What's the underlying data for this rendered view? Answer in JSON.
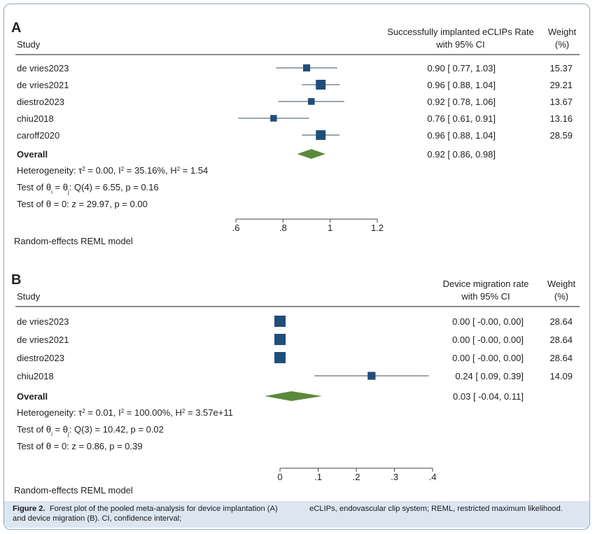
{
  "caption": {
    "label": "Figure 2.",
    "left_text": "Forest plot of the pooled meta-analysis for device implantation (A) and device migration (B). CI, confidence interval;",
    "right_text": "eCLIPs, endovascular clip system; REML, restricted maximum likelihood."
  },
  "colors": {
    "study_marker": "#1f4e79",
    "overall_diamond": "#5b8a3c",
    "frame_border": "#8aa8c6",
    "caption_bg": "#dce6f1"
  },
  "chart_data": [
    {
      "type": "forest",
      "panel_label": "A",
      "study_header": "Study",
      "effect_header": [
        "Successfully implanted eCLIPs Rate",
        "with 95% CI"
      ],
      "weight_header": [
        "Weight",
        "(%)"
      ],
      "x_ticks": [
        ".6",
        ".8",
        "1",
        "1.2"
      ],
      "x_tick_values": [
        0.6,
        0.8,
        1.0,
        1.2
      ],
      "xlim": [
        0.6,
        1.2
      ],
      "studies": [
        {
          "name": "de vries2023",
          "estimate": 0.9,
          "lower": 0.77,
          "upper": 1.03,
          "ci_text": "0.90 [ 0.77,  1.03]",
          "weight": 15.37,
          "weight_text": "15.37"
        },
        {
          "name": "de vries2021",
          "estimate": 0.96,
          "lower": 0.88,
          "upper": 1.04,
          "ci_text": "0.96 [ 0.88,  1.04]",
          "weight": 29.21,
          "weight_text": "29.21"
        },
        {
          "name": "diestro2023",
          "estimate": 0.92,
          "lower": 0.78,
          "upper": 1.06,
          "ci_text": "0.92 [ 0.78,  1.06]",
          "weight": 13.67,
          "weight_text": "13.67"
        },
        {
          "name": "chiu2018",
          "estimate": 0.76,
          "lower": 0.61,
          "upper": 0.91,
          "ci_text": "0.76 [ 0.61,  0.91]",
          "weight": 13.16,
          "weight_text": "13.16"
        },
        {
          "name": "caroff2020",
          "estimate": 0.96,
          "lower": 0.88,
          "upper": 1.04,
          "ci_text": "0.96 [ 0.88,  1.04]",
          "weight": 28.59,
          "weight_text": "28.59"
        }
      ],
      "overall": {
        "name": "Overall",
        "estimate": 0.92,
        "lower": 0.86,
        "upper": 0.98,
        "ci_text": "0.92 [ 0.86,  0.98]"
      },
      "heterogeneity": {
        "tau2": "0.00",
        "I2": "35.16%",
        "H2": "1.54"
      },
      "homogeneity_test": {
        "df": "4",
        "Q": "6.55",
        "p": "0.16"
      },
      "overall_test": {
        "z": "29.97",
        "p": "0.00"
      },
      "model": "Random-effects REML model"
    },
    {
      "type": "forest",
      "panel_label": "B",
      "study_header": "Study",
      "effect_header": [
        "Device migration rate",
        "with 95% CI"
      ],
      "weight_header": [
        "Weight",
        "(%)"
      ],
      "x_ticks": [
        "0",
        ".1",
        ".2",
        ".3",
        ".4"
      ],
      "x_tick_values": [
        0,
        0.1,
        0.2,
        0.3,
        0.4
      ],
      "xlim": [
        0,
        0.4
      ],
      "studies": [
        {
          "name": "de vries2023",
          "estimate": 0.0,
          "lower": -0.0,
          "upper": 0.0,
          "ci_text": "0.00 [ -0.00,  0.00]",
          "weight": 28.64,
          "weight_text": "28.64"
        },
        {
          "name": "de vries2021",
          "estimate": 0.0,
          "lower": -0.0,
          "upper": 0.0,
          "ci_text": "0.00 [ -0.00,  0.00]",
          "weight": 28.64,
          "weight_text": "28.64"
        },
        {
          "name": "diestro2023",
          "estimate": 0.0,
          "lower": -0.0,
          "upper": 0.0,
          "ci_text": "0.00 [ -0.00,  0.00]",
          "weight": 28.64,
          "weight_text": "28.64"
        },
        {
          "name": "chiu2018",
          "estimate": 0.24,
          "lower": 0.09,
          "upper": 0.39,
          "ci_text": "0.24 [  0.09,  0.39]",
          "weight": 14.09,
          "weight_text": "14.09"
        }
      ],
      "overall": {
        "name": "Overall",
        "estimate": 0.03,
        "lower": -0.04,
        "upper": 0.11,
        "ci_text": "0.03 [ -0.04,  0.11]"
      },
      "heterogeneity": {
        "tau2": "0.01",
        "I2": "100.00%",
        "H2": "3.57e+11"
      },
      "homogeneity_test": {
        "df": "3",
        "Q": "10.42",
        "p": "0.02"
      },
      "overall_test": {
        "z": "0.86",
        "p": "0.39"
      },
      "model": "Random-effects REML model"
    }
  ]
}
